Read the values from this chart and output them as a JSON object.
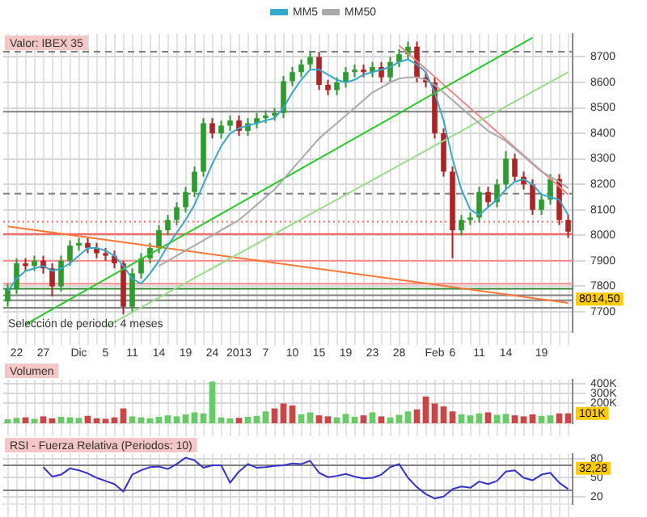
{
  "chart_data": [
    {
      "type": "candlestick",
      "title": "Valor: IBEX 35",
      "legend": "top",
      "grid": true,
      "categories": [
        null,
        "22",
        null,
        null,
        "27",
        null,
        null,
        null,
        "Dic",
        null,
        null,
        "5",
        null,
        null,
        "11",
        null,
        null,
        "14",
        null,
        null,
        "19",
        null,
        null,
        "24",
        null,
        null,
        "2013",
        null,
        null,
        "7",
        null,
        null,
        "10",
        null,
        null,
        "15",
        null,
        null,
        "19",
        null,
        null,
        "23",
        null,
        null,
        "28",
        null,
        null,
        null,
        "Feb",
        null,
        "6",
        null,
        null,
        "11",
        null,
        null,
        "14",
        null,
        null,
        null,
        "19",
        null,
        null,
        null
      ],
      "ohlc": [
        [
          7740,
          7810,
          7720,
          7790
        ],
        [
          7790,
          7910,
          7770,
          7890
        ],
        [
          7890,
          7910,
          7860,
          7880
        ],
        [
          7880,
          7920,
          7860,
          7900
        ],
        [
          7900,
          7920,
          7850,
          7870
        ],
        [
          7870,
          7890,
          7760,
          7800
        ],
        [
          7800,
          7920,
          7780,
          7900
        ],
        [
          7900,
          7980,
          7880,
          7960
        ],
        [
          7960,
          7990,
          7940,
          7970
        ],
        [
          7970,
          7990,
          7930,
          7950
        ],
        [
          7950,
          7970,
          7910,
          7930
        ],
        [
          7930,
          7950,
          7900,
          7920
        ],
        [
          7920,
          7940,
          7870,
          7890
        ],
        [
          7890,
          7900,
          7690,
          7720
        ],
        [
          7720,
          7870,
          7700,
          7850
        ],
        [
          7850,
          7930,
          7830,
          7910
        ],
        [
          7910,
          7970,
          7890,
          7950
        ],
        [
          7950,
          8040,
          7930,
          8020
        ],
        [
          8020,
          8080,
          8000,
          8060
        ],
        [
          8060,
          8130,
          8040,
          8110
        ],
        [
          8110,
          8190,
          8090,
          8170
        ],
        [
          8170,
          8270,
          8150,
          8250
        ],
        [
          8250,
          8460,
          8230,
          8440
        ],
        [
          8440,
          8460,
          8380,
          8400
        ],
        [
          8400,
          8450,
          8380,
          8430
        ],
        [
          8430,
          8470,
          8410,
          8450
        ],
        [
          8450,
          8470,
          8390,
          8410
        ],
        [
          8410,
          8460,
          8390,
          8440
        ],
        [
          8440,
          8480,
          8420,
          8460
        ],
        [
          8460,
          8490,
          8440,
          8470
        ],
        [
          8470,
          8500,
          8450,
          8480
        ],
        [
          8480,
          8625,
          8460,
          8605
        ],
        [
          8605,
          8660,
          8585,
          8640
        ],
        [
          8640,
          8690,
          8620,
          8670
        ],
        [
          8670,
          8720,
          8650,
          8700
        ],
        [
          8700,
          8720,
          8570,
          8590
        ],
        [
          8590,
          8610,
          8550,
          8570
        ],
        [
          8570,
          8620,
          8550,
          8600
        ],
        [
          8600,
          8660,
          8580,
          8640
        ],
        [
          8640,
          8670,
          8620,
          8650
        ],
        [
          8650,
          8670,
          8620,
          8640
        ],
        [
          8640,
          8680,
          8620,
          8660
        ],
        [
          8660,
          8680,
          8600,
          8620
        ],
        [
          8620,
          8700,
          8600,
          8680
        ],
        [
          8680,
          8730,
          8660,
          8710
        ],
        [
          8710,
          8760,
          8690,
          8740
        ],
        [
          8740,
          8760,
          8600,
          8620
        ],
        [
          8620,
          8640,
          8580,
          8600
        ],
        [
          8600,
          8620,
          8380,
          8400
        ],
        [
          8400,
          8420,
          8230,
          8250
        ],
        [
          8250,
          8270,
          7910,
          8020
        ],
        [
          8020,
          8080,
          8000,
          8060
        ],
        [
          8060,
          8090,
          8040,
          8070
        ],
        [
          8070,
          8190,
          8050,
          8170
        ],
        [
          8170,
          8190,
          8110,
          8130
        ],
        [
          8130,
          8220,
          8110,
          8200
        ],
        [
          8200,
          8330,
          8180,
          8300
        ],
        [
          8300,
          8320,
          8210,
          8230
        ],
        [
          8230,
          8250,
          8180,
          8200
        ],
        [
          8200,
          8220,
          8080,
          8100
        ],
        [
          8100,
          8160,
          8080,
          8140
        ],
        [
          8140,
          8240,
          8120,
          8220
        ],
        [
          8220,
          8240,
          8040,
          8060
        ],
        [
          8060,
          8080,
          7990,
          8014.5
        ]
      ],
      "colors": [
        "#2a9d2a",
        "#2a9d2a",
        "#b22222",
        "#2a9d2a",
        "#b22222",
        "#b22222",
        "#2a9d2a",
        "#2a9d2a",
        "#2a9d2a",
        "#b22222",
        "#b22222",
        "#b22222",
        "#b22222",
        "#b22222",
        "#2a9d2a",
        "#2a9d2a",
        "#2a9d2a",
        "#2a9d2a",
        "#2a9d2a",
        "#2a9d2a",
        "#2a9d2a",
        "#2a9d2a",
        "#2a9d2a",
        "#b22222",
        "#2a9d2a",
        "#2a9d2a",
        "#b22222",
        "#2a9d2a",
        "#2a9d2a",
        "#2a9d2a",
        "#2a9d2a",
        "#2a9d2a",
        "#2a9d2a",
        "#2a9d2a",
        "#2a9d2a",
        "#b22222",
        "#b22222",
        "#2a9d2a",
        "#2a9d2a",
        "#2a9d2a",
        "#b22222",
        "#2a9d2a",
        "#b22222",
        "#2a9d2a",
        "#2a9d2a",
        "#2a9d2a",
        "#b22222",
        "#b22222",
        "#b22222",
        "#b22222",
        "#b22222",
        "#2a9d2a",
        "#2a9d2a",
        "#2a9d2a",
        "#b22222",
        "#2a9d2a",
        "#2a9d2a",
        "#b22222",
        "#b22222",
        "#b22222",
        "#2a9d2a",
        "#2a9d2a",
        "#b22222",
        "#b22222"
      ],
      "series": [
        {
          "name": "MM5",
          "type": "line",
          "color": "#33aacc",
          "values": [
            7780,
            7830,
            7860,
            7870,
            7880,
            7860,
            7870,
            7890,
            7920,
            7950,
            7950,
            7940,
            7920,
            7880,
            7830,
            7810,
            7850,
            7900,
            7960,
            8010,
            8060,
            8120,
            8200,
            8280,
            8350,
            8400,
            8420,
            8430,
            8440,
            8450,
            8460,
            8500,
            8560,
            8610,
            8650,
            8650,
            8630,
            8610,
            8600,
            8610,
            8630,
            8640,
            8650,
            8660,
            8680,
            8690,
            8670,
            8640,
            8560,
            8450,
            8300,
            8180,
            8100,
            8080,
            8110,
            8140,
            8180,
            8210,
            8220,
            8200,
            8160,
            8150,
            8140,
            8080
          ]
        },
        {
          "name": "MM50",
          "type": "line",
          "color": "#aaaaaa",
          "values": [
            null,
            null,
            null,
            null,
            null,
            null,
            null,
            null,
            null,
            null,
            null,
            null,
            null,
            null,
            null,
            null,
            null,
            7880,
            7900,
            7920,
            7940,
            7960,
            7980,
            8000,
            8020,
            8040,
            8060,
            8090,
            8120,
            8150,
            8180,
            8220,
            8260,
            8300,
            8340,
            8380,
            8410,
            8440,
            8470,
            8500,
            8530,
            8560,
            8580,
            8600,
            8615,
            8620,
            8620,
            8610,
            8590,
            8560,
            8530,
            8500,
            8470,
            8440,
            8410,
            8390,
            8370,
            8340,
            8310,
            8280,
            8250,
            8230,
            8210,
            8185
          ]
        },
        {
          "type": "line",
          "color": "#22cc22",
          "values": [
            null,
            null,
            7650,
            null,
            null,
            null,
            null,
            null,
            null,
            null,
            null,
            null,
            null,
            null,
            null,
            null,
            null,
            null,
            null,
            null,
            null,
            null,
            null,
            null,
            null,
            null,
            null,
            null,
            null,
            null,
            null,
            null,
            null,
            null,
            null,
            null,
            null,
            null,
            null,
            null,
            null,
            null,
            null,
            null,
            null,
            null,
            null,
            null,
            null,
            null,
            null,
            null,
            null,
            null,
            null,
            null,
            null,
            null,
            null,
            8775,
            null,
            null,
            null,
            null
          ]
        },
        {
          "type": "line",
          "color": "#99dd88",
          "values": [
            null,
            null,
            null,
            null,
            null,
            null,
            null,
            null,
            null,
            null,
            null,
            7640,
            null,
            null,
            null,
            null,
            null,
            null,
            null,
            null,
            null,
            null,
            null,
            null,
            null,
            null,
            null,
            null,
            null,
            null,
            null,
            null,
            null,
            null,
            null,
            null,
            null,
            null,
            null,
            null,
            null,
            null,
            null,
            null,
            null,
            null,
            null,
            null,
            null,
            null,
            null,
            null,
            null,
            null,
            null,
            null,
            null,
            null,
            null,
            null,
            null,
            null,
            null,
            8640
          ]
        },
        {
          "type": "line",
          "color": "#ff7733",
          "values": [
            8035,
            null,
            null,
            null,
            null,
            null,
            null,
            null,
            null,
            null,
            null,
            null,
            null,
            null,
            null,
            null,
            null,
            null,
            null,
            null,
            null,
            null,
            null,
            null,
            null,
            null,
            null,
            null,
            null,
            null,
            null,
            null,
            null,
            null,
            null,
            null,
            null,
            null,
            null,
            null,
            null,
            null,
            null,
            null,
            null,
            null,
            null,
            null,
            null,
            null,
            null,
            null,
            null,
            null,
            null,
            null,
            null,
            null,
            null,
            null,
            null,
            null,
            null,
            7735
          ]
        },
        {
          "type": "line",
          "color": "#ee8888",
          "values": [
            null,
            null,
            null,
            null,
            null,
            null,
            null,
            null,
            null,
            null,
            null,
            null,
            null,
            null,
            null,
            null,
            null,
            null,
            null,
            null,
            null,
            null,
            null,
            null,
            null,
            null,
            null,
            null,
            null,
            null,
            null,
            null,
            null,
            null,
            null,
            null,
            null,
            null,
            null,
            null,
            null,
            null,
            null,
            null,
            8745,
            null,
            null,
            null,
            null,
            null,
            null,
            null,
            null,
            null,
            null,
            null,
            null,
            null,
            null,
            null,
            null,
            null,
            null,
            8160
          ]
        }
      ],
      "ylim": [
        7620,
        8790
      ],
      "yticks": [
        7700,
        7800,
        7900,
        8000,
        8100,
        8200,
        8300,
        8400,
        8500,
        8600,
        8700
      ],
      "ref_lines": [
        {
          "axis": "y",
          "value": 8720,
          "color": "#808080",
          "line_style": "dashed"
        },
        {
          "axis": "y",
          "value": 8485,
          "color": "#808080"
        },
        {
          "axis": "y",
          "value": 8163,
          "color": "#808080",
          "line_style": "dashed"
        },
        {
          "axis": "y",
          "value": 8053,
          "color": "#ff6666",
          "line_style": "dotted"
        },
        {
          "axis": "y",
          "value": 8005,
          "color": "#ff5555"
        },
        {
          "axis": "y",
          "value": 7900,
          "color": "#ff8888"
        },
        {
          "axis": "y",
          "value": 7810,
          "color": "#ff8888"
        },
        {
          "axis": "y",
          "value": 7790,
          "color": "#338833"
        },
        {
          "axis": "y",
          "value": 7765,
          "color": "#808080"
        },
        {
          "axis": "y",
          "value": 7745,
          "color": "#808080"
        },
        {
          "axis": "y",
          "value": 7716,
          "color": "#808080"
        }
      ],
      "annotations": [
        "Selección de periodo: 4 meses",
        "8014,50"
      ]
    },
    {
      "type": "bar",
      "title": "Volumen",
      "grid": true,
      "tick_labels": "y",
      "categories": [
        null,
        null,
        null,
        null,
        null,
        null,
        null,
        null,
        null,
        null,
        null,
        null,
        null,
        null,
        null,
        null,
        null,
        null,
        null,
        null,
        null,
        null,
        null,
        null,
        null,
        null,
        null,
        null,
        null,
        null,
        null,
        null,
        null,
        null,
        null,
        null,
        null,
        null,
        null,
        null,
        null,
        null,
        null,
        null,
        null,
        null,
        null,
        null,
        null,
        null,
        null,
        null,
        null,
        null,
        null,
        null,
        null,
        null,
        null,
        null,
        null,
        null,
        null,
        null
      ],
      "values": [
        40,
        55,
        60,
        45,
        70,
        50,
        65,
        60,
        55,
        75,
        50,
        45,
        60,
        150,
        70,
        60,
        50,
        65,
        80,
        70,
        90,
        110,
        100,
        420,
        60,
        50,
        55,
        65,
        75,
        120,
        150,
        200,
        180,
        90,
        110,
        80,
        70,
        60,
        95,
        65,
        80,
        110,
        70,
        60,
        85,
        120,
        140,
        270,
        200,
        170,
        120,
        90,
        80,
        100,
        110,
        85,
        95,
        80,
        70,
        90,
        75,
        80,
        100,
        101
      ],
      "colors": [
        "#66cc66",
        "#66cc66",
        "#cc4444",
        "#66cc66",
        "#cc4444",
        "#cc4444",
        "#66cc66",
        "#66cc66",
        "#66cc66",
        "#cc4444",
        "#cc4444",
        "#cc4444",
        "#cc4444",
        "#cc4444",
        "#66cc66",
        "#66cc66",
        "#66cc66",
        "#66cc66",
        "#66cc66",
        "#66cc66",
        "#66cc66",
        "#66cc66",
        "#66cc66",
        "#66cc66",
        "#66cc66",
        "#66cc66",
        "#cc4444",
        "#66cc66",
        "#66cc66",
        "#66cc66",
        "#cc4444",
        "#cc4444",
        "#cc4444",
        "#66cc66",
        "#66cc66",
        "#cc4444",
        "#cc4444",
        "#66cc66",
        "#66cc66",
        "#66cc66",
        "#cc4444",
        "#66cc66",
        "#cc4444",
        "#66cc66",
        "#66cc66",
        "#66cc66",
        "#cc4444",
        "#cc4444",
        "#cc4444",
        "#cc4444",
        "#cc4444",
        "#66cc66",
        "#66cc66",
        "#66cc66",
        "#cc4444",
        "#66cc66",
        "#66cc66",
        "#cc4444",
        "#cc4444",
        "#cc4444",
        "#66cc66",
        "#66cc66",
        "#cc4444",
        "#cc4444"
      ],
      "ylim": [
        0,
        440
      ],
      "yticks": [
        {
          "value": 200,
          "label": "200K"
        },
        {
          "value": 300,
          "label": "300K"
        },
        {
          "value": 400,
          "label": "400K"
        }
      ],
      "annotations": [
        "101K"
      ]
    },
    {
      "type": "line",
      "title": "RSI - Fuerza Relativa (Periodos: 10)",
      "grid": true,
      "tick_labels": "y",
      "categories": [
        null,
        null,
        null,
        null,
        null,
        null,
        null,
        null,
        null,
        null,
        null,
        null,
        null,
        null,
        null,
        null,
        null,
        null,
        null,
        null,
        null,
        null,
        null,
        null,
        null,
        null,
        null,
        null,
        null,
        null,
        null,
        null,
        null,
        null,
        null,
        null,
        null,
        null,
        null,
        null,
        null,
        null,
        null,
        null,
        null,
        null,
        null,
        null,
        null,
        null,
        null,
        null,
        null,
        null,
        null,
        null,
        null,
        null,
        null,
        null,
        null,
        null,
        null,
        null
      ],
      "series": [
        {
          "color": "#3333cc",
          "values": [
            null,
            null,
            null,
            null,
            67,
            52,
            55,
            65,
            62,
            57,
            50,
            45,
            40,
            28,
            55,
            62,
            67,
            68,
            64,
            72,
            82,
            78,
            66,
            70,
            70,
            42,
            60,
            72,
            66,
            67,
            69,
            70,
            73,
            72,
            77,
            58,
            51,
            53,
            56,
            52,
            49,
            50,
            55,
            67,
            72,
            50,
            35,
            24,
            17,
            20,
            32,
            36,
            34,
            44,
            40,
            45,
            60,
            62,
            50,
            46,
            55,
            58,
            42,
            32
          ]
        }
      ],
      "ylim": [
        8,
        88
      ],
      "yticks": [
        20,
        50,
        80
      ],
      "ref_lines": [
        {
          "axis": "y",
          "value": 70,
          "color": "#808080"
        },
        {
          "axis": "y",
          "value": 30,
          "color": "#808080"
        }
      ],
      "annotations": [
        "32,28"
      ]
    }
  ]
}
